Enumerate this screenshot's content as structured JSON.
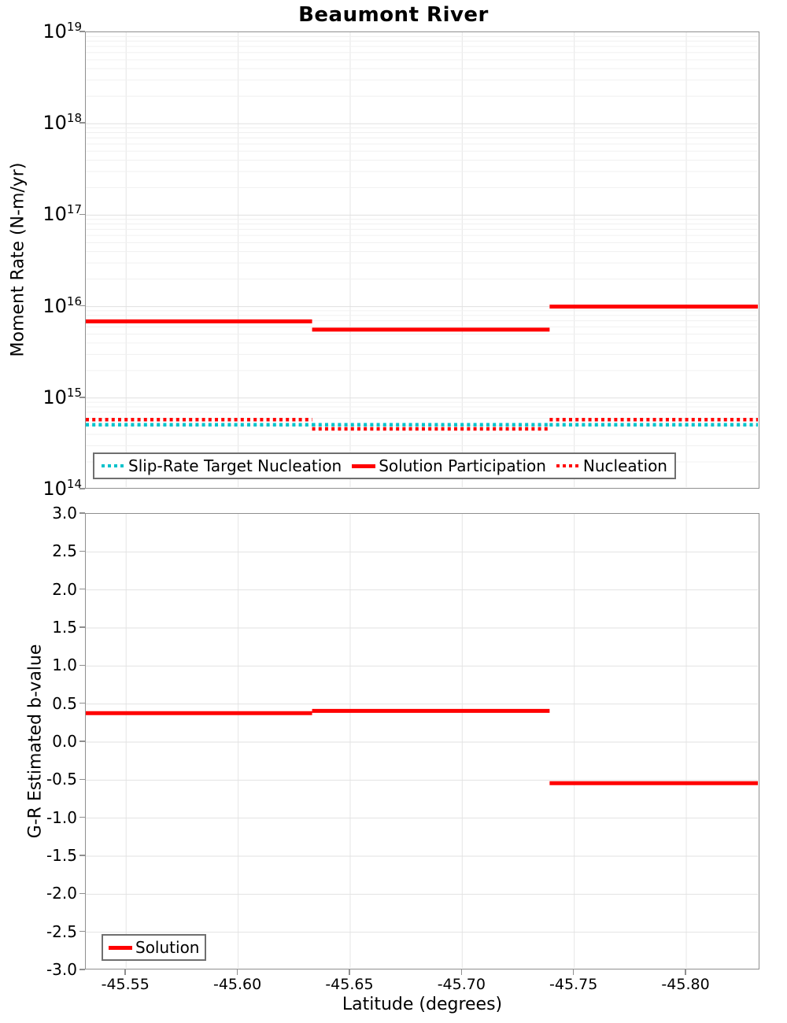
{
  "title": "Beaumont River",
  "axes": {
    "top_y_title": "Moment Rate (N-m/yr)",
    "bottom_y_title": "G-R Estimated b-value",
    "x_title": "Latitude (degrees)"
  },
  "chart_data": [
    {
      "type": "line",
      "subtype": "step-segments",
      "title": "Beaumont River",
      "ylabel": "Moment Rate (N-m/yr)",
      "xlabel": "",
      "yscale": "log",
      "ylim_exponents": [
        14,
        19
      ],
      "xlim": [
        -45.532,
        -45.833
      ],
      "x_axis_inverted": true,
      "x_ticks": [
        -45.55,
        -45.6,
        -45.65,
        -45.7,
        -45.75,
        -45.8
      ],
      "grid": true,
      "legend_position": "bottom-left-inside",
      "segment_bounds_lat": [
        -45.532,
        -45.633,
        -45.739,
        -45.833
      ],
      "series": [
        {
          "name": "Slip-Rate Target Nucleation",
          "style": "dotted",
          "color": "#00c2cb",
          "values": [
            510000000000000.0,
            510000000000000.0,
            510000000000000.0
          ]
        },
        {
          "name": "Solution Participation",
          "style": "solid",
          "color": "#ff0000",
          "values": [
            6900000000000000.0,
            5600000000000000.0,
            1e+16
          ]
        },
        {
          "name": "Nucleation",
          "style": "dotted",
          "color": "#ff0000",
          "values": [
            580000000000000.0,
            460000000000000.0,
            580000000000000.0
          ]
        }
      ]
    },
    {
      "type": "line",
      "subtype": "step-segments",
      "ylabel": "G-R Estimated b-value",
      "xlabel": "Latitude (degrees)",
      "ylim": [
        -3.0,
        3.0
      ],
      "y_tick_step": 0.5,
      "xlim": [
        -45.532,
        -45.833
      ],
      "x_axis_inverted": true,
      "x_ticks": [
        -45.55,
        -45.6,
        -45.65,
        -45.7,
        -45.75,
        -45.8
      ],
      "grid": true,
      "legend_position": "bottom-left-inside",
      "segment_bounds_lat": [
        -45.532,
        -45.633,
        -45.739,
        -45.833
      ],
      "series": [
        {
          "name": "Solution",
          "style": "solid",
          "color": "#ff0000",
          "values": [
            0.38,
            0.41,
            -0.54
          ]
        }
      ]
    }
  ]
}
